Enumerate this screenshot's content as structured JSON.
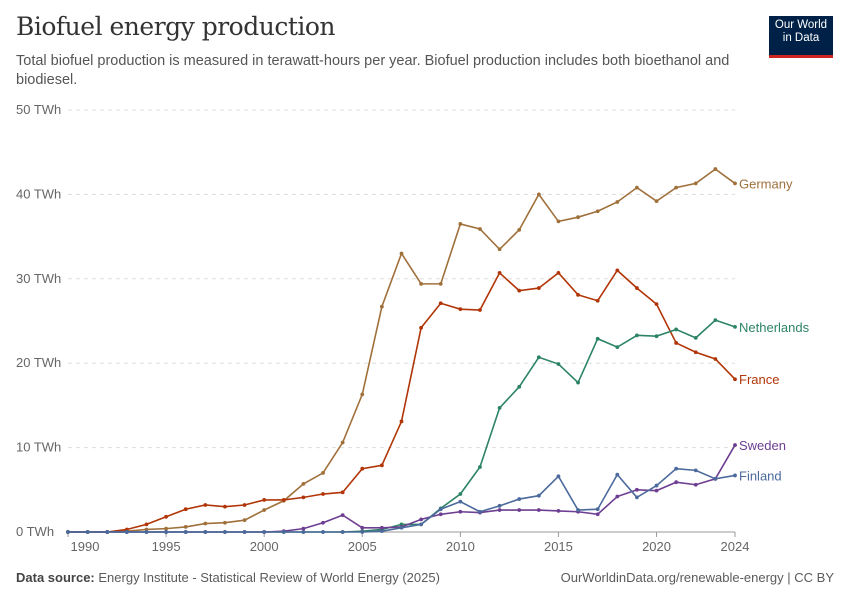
{
  "header": {
    "title": "Biofuel energy production",
    "subtitle": "Total biofuel production is measured in terawatt-hours per year. Biofuel production includes both bioethanol and biodiesel.",
    "logo": "Our World in Data",
    "logo_line1": "Our World",
    "logo_line2": "in Data"
  },
  "footer": {
    "source_label": "Data source:",
    "source": "Energy Institute - Statistical Review of World Energy (2025)",
    "link": "OurWorldinData.org/renewable-energy | CC BY"
  },
  "chart_data": {
    "type": "line",
    "title": "Biofuel energy production",
    "xlabel": "",
    "ylabel": "",
    "xlim": [
      1990,
      2024
    ],
    "ylim": [
      0,
      50
    ],
    "grid": "horizontal dashed",
    "legend": "inline-right",
    "x_ticks": [
      "1990",
      "1995",
      "2000",
      "2005",
      "2010",
      "2015",
      "2020",
      "2024"
    ],
    "y_ticks": [
      "0 TWh",
      "10 TWh",
      "20 TWh",
      "30 TWh",
      "40 TWh",
      "50 TWh"
    ],
    "x": [
      1990,
      1991,
      1992,
      1993,
      1994,
      1995,
      1996,
      1997,
      1998,
      1999,
      2000,
      2001,
      2002,
      2003,
      2004,
      2005,
      2006,
      2007,
      2008,
      2009,
      2010,
      2011,
      2012,
      2013,
      2014,
      2015,
      2016,
      2017,
      2018,
      2019,
      2020,
      2021,
      2022,
      2023,
      2024
    ],
    "series": [
      {
        "name": "Germany",
        "color": "#a0703b",
        "values": [
          0,
          0,
          0,
          0.1,
          0.3,
          0.4,
          0.6,
          1.0,
          1.1,
          1.4,
          2.6,
          3.7,
          5.7,
          7.0,
          10.6,
          16.3,
          26.7,
          33.0,
          29.4,
          29.4,
          36.5,
          35.9,
          33.5,
          35.8,
          40.0,
          36.8,
          37.3,
          38.0,
          39.1,
          40.8,
          39.2,
          40.8,
          41.3,
          43.0,
          41.3
        ]
      },
      {
        "name": "France",
        "color": "#b13507",
        "values": [
          0,
          0,
          0,
          0.3,
          0.9,
          1.8,
          2.7,
          3.2,
          3.0,
          3.2,
          3.8,
          3.8,
          4.1,
          4.5,
          4.7,
          7.5,
          7.9,
          13.1,
          24.2,
          27.1,
          26.4,
          26.3,
          30.7,
          28.6,
          28.9,
          30.7,
          28.1,
          27.4,
          31.0,
          28.9,
          27.0,
          22.4,
          21.3,
          20.5,
          18.1
        ]
      },
      {
        "name": "Netherlands",
        "color": "#2c8465",
        "values": [
          0,
          0,
          0,
          0,
          0,
          0,
          0,
          0,
          0,
          0,
          0,
          0,
          0,
          0,
          0,
          0.1,
          0.3,
          0.9,
          0.9,
          2.8,
          4.5,
          7.7,
          14.7,
          17.2,
          20.7,
          19.9,
          17.7,
          22.9,
          21.9,
          23.3,
          23.2,
          24.0,
          23.0,
          25.1,
          24.3
        ]
      },
      {
        "name": "Sweden",
        "color": "#6d3e91",
        "values": [
          0,
          0,
          0,
          0,
          0,
          0,
          0,
          0,
          0,
          0,
          0,
          0.1,
          0.4,
          1.1,
          2.0,
          0.5,
          0.5,
          0.6,
          1.5,
          2.1,
          2.4,
          2.3,
          2.6,
          2.6,
          2.6,
          2.5,
          2.4,
          2.1,
          4.2,
          5.0,
          4.9,
          5.9,
          5.6,
          6.3,
          10.3
        ]
      },
      {
        "name": "Finland",
        "color": "#4c6a9c",
        "values": [
          0,
          0,
          0,
          0,
          0,
          0,
          0,
          0,
          0,
          0,
          0,
          0,
          0,
          0,
          0,
          0,
          0.1,
          0.5,
          0.9,
          2.7,
          3.6,
          2.4,
          3.1,
          3.9,
          4.3,
          6.6,
          2.6,
          2.7,
          6.8,
          4.1,
          5.5,
          7.5,
          7.3,
          6.3,
          6.7
        ]
      }
    ]
  }
}
